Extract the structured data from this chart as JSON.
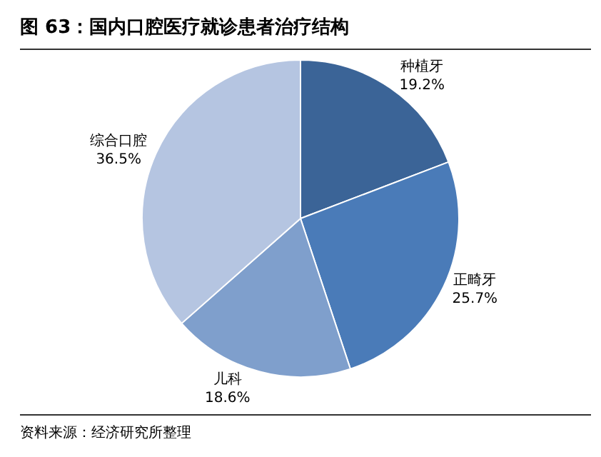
{
  "chart_data": {
    "type": "pie",
    "title": "图 63：国内口腔医疗就诊患者治疗结构",
    "categories": [
      "种植牙",
      "正畸牙",
      "儿科",
      "综合口腔"
    ],
    "values": [
      19.2,
      25.7,
      18.6,
      36.5
    ],
    "colors": [
      "#3b6497",
      "#4a7bb8",
      "#7f9fcc",
      "#b5c5e1"
    ],
    "value_labels": [
      "19.2%",
      "25.7%",
      "18.6%",
      "36.5%"
    ],
    "annotations": [
      "资料来源：经济研究所整理"
    ]
  }
}
